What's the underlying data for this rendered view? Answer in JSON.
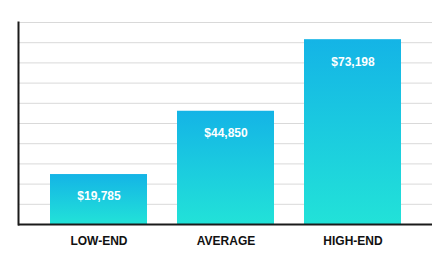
{
  "chart_data": {
    "type": "bar",
    "categories": [
      "LOW-END",
      "AVERAGE",
      "HIGH-END"
    ],
    "values": [
      19785,
      44850,
      73198
    ],
    "value_labels": [
      "$19,785",
      "$44,850",
      "$73,198"
    ],
    "color": "#14b4e6",
    "ylim": [
      0,
      80000
    ],
    "yticks": [
      0,
      8000,
      16000,
      24000,
      32000,
      40000,
      48000,
      56000,
      64000,
      72000,
      80000
    ],
    "grid": true,
    "data_labels": true,
    "tick_labels": "x"
  }
}
